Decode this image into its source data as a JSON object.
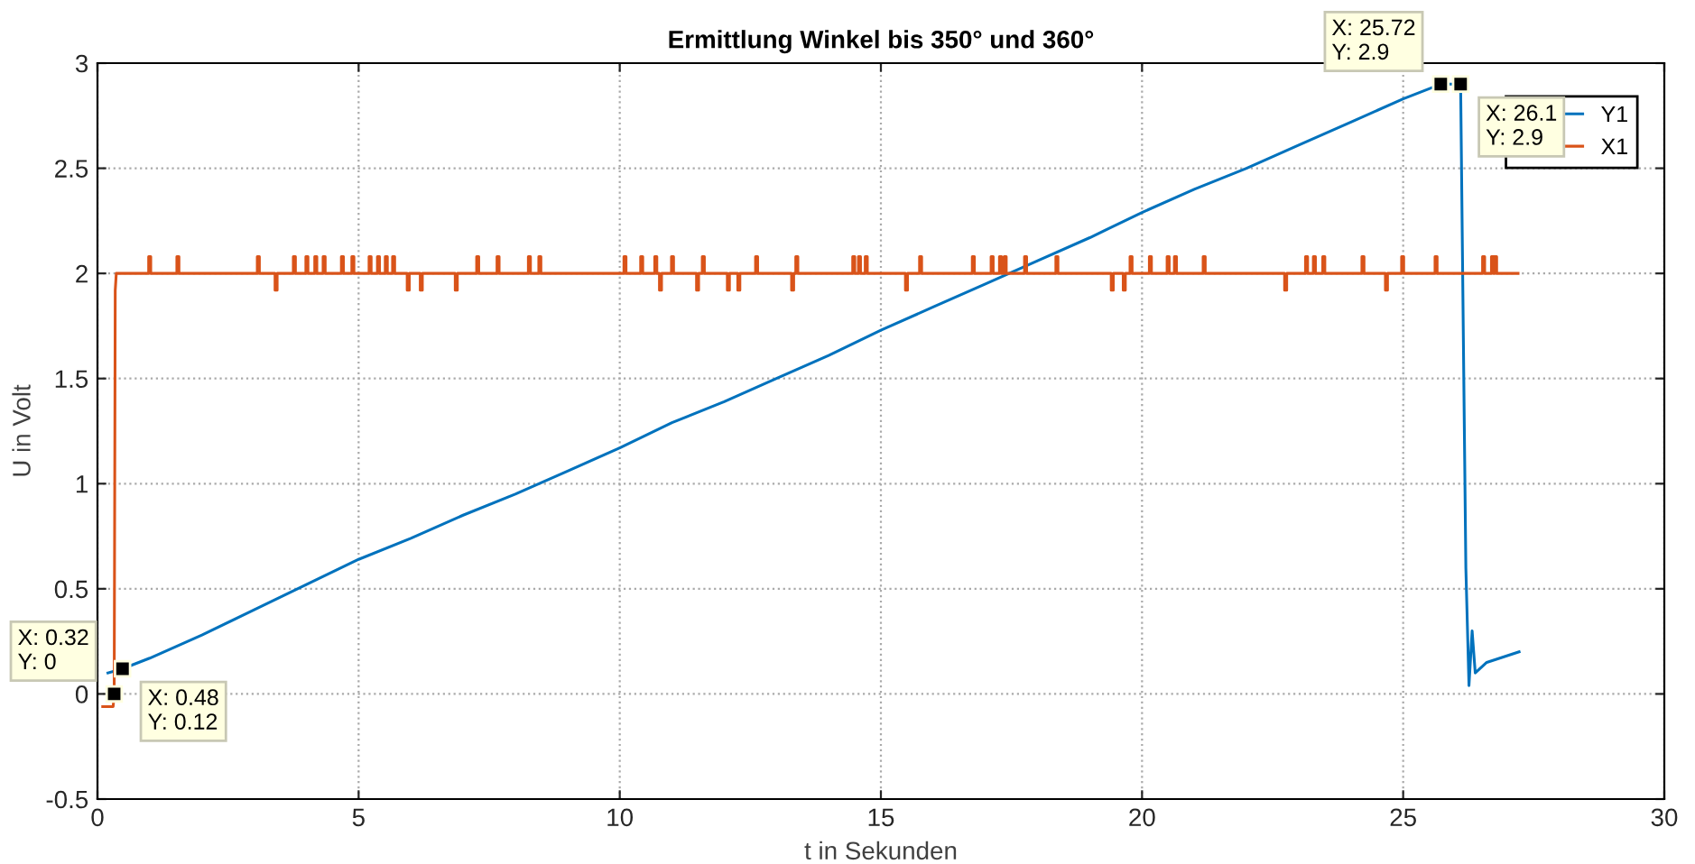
{
  "chart_data": {
    "type": "line",
    "title": "Ermittlung Winkel bis 350° und 360°",
    "xlabel": "t in Sekunden",
    "ylabel": "U in Volt",
    "xlim": [
      0,
      30
    ],
    "xticks": [
      0,
      5,
      10,
      15,
      20,
      25,
      30
    ],
    "ylim": [
      -0.5,
      3
    ],
    "yticks": [
      -0.5,
      0,
      0.5,
      1,
      1.5,
      2,
      2.5,
      3
    ],
    "grid": true,
    "legend": "top right",
    "marker": "none",
    "line_style": "solid",
    "series": [
      {
        "name": "Y1",
        "color": "#0072bd",
        "x": [
          0.2,
          0.48,
          1,
          2,
          3,
          4,
          5,
          6,
          7,
          8,
          9,
          10,
          11,
          12,
          13,
          14,
          15,
          16,
          17,
          18,
          19,
          20,
          21,
          22,
          23,
          24,
          25,
          25.72,
          26.1,
          26.2,
          26.26,
          26.32,
          26.38,
          26.6,
          27.22
        ],
        "values": [
          0.1,
          0.12,
          0.17,
          0.28,
          0.4,
          0.52,
          0.64,
          0.74,
          0.85,
          0.95,
          1.06,
          1.17,
          1.29,
          1.39,
          1.5,
          1.61,
          1.73,
          1.84,
          1.95,
          2.06,
          2.17,
          2.29,
          2.4,
          2.5,
          2.61,
          2.72,
          2.83,
          2.9,
          2.9,
          0.6,
          0.04,
          0.3,
          0.1,
          0.15,
          0.2
        ]
      },
      {
        "name": "X1",
        "color": "#d95319",
        "x": [
          0.1,
          0.3,
          0.32,
          0.34,
          0.36,
          0.98,
          0.98,
          1.02,
          1.02,
          1.52,
          1.52,
          1.56,
          1.56,
          3.06,
          3.06,
          3.1,
          3.1,
          3.4,
          3.4,
          3.44,
          3.44,
          3.75,
          3.75,
          3.79,
          3.79,
          3.99,
          3.99,
          4.03,
          4.03,
          4.16,
          4.16,
          4.2,
          4.2,
          4.32,
          4.32,
          4.36,
          4.36,
          4.67,
          4.67,
          4.71,
          4.71,
          4.87,
          4.87,
          4.91,
          4.91,
          5.2,
          5.2,
          5.24,
          5.24,
          5.36,
          5.36,
          5.4,
          5.4,
          5.51,
          5.51,
          5.55,
          5.55,
          5.65,
          5.65,
          5.69,
          5.69,
          5.93,
          5.93,
          5.97,
          5.97,
          6.18,
          6.18,
          6.22,
          6.22,
          6.85,
          6.85,
          6.89,
          6.89,
          7.26,
          7.26,
          7.3,
          7.3,
          7.65,
          7.65,
          7.69,
          7.69,
          8.25,
          8.25,
          8.29,
          8.29,
          8.45,
          8.45,
          8.49,
          8.49,
          10.08,
          10.08,
          10.12,
          10.12,
          10.4,
          10.4,
          10.44,
          10.44,
          10.67,
          10.67,
          10.71,
          10.71,
          10.76,
          10.76,
          10.8,
          10.8,
          10.99,
          10.99,
          11.03,
          11.03,
          11.47,
          11.47,
          11.51,
          11.51,
          11.58,
          11.58,
          11.62,
          11.62,
          12.06,
          12.06,
          12.1,
          12.1,
          12.26,
          12.26,
          12.3,
          12.3,
          12.6,
          12.6,
          12.64,
          12.64,
          13.29,
          13.29,
          13.33,
          13.33,
          13.37,
          13.37,
          13.41,
          13.41,
          14.46,
          14.46,
          14.5,
          14.5,
          14.57,
          14.57,
          14.61,
          14.61,
          14.7,
          14.7,
          14.74,
          14.74,
          15.47,
          15.47,
          15.51,
          15.51,
          15.74,
          15.74,
          15.78,
          15.78,
          16.75,
          16.75,
          16.79,
          16.79,
          17.11,
          17.11,
          17.15,
          17.15,
          17.27,
          17.27,
          17.31,
          17.31,
          17.36,
          17.36,
          17.4,
          17.4,
          17.75,
          17.75,
          17.79,
          17.79,
          18.35,
          18.35,
          18.39,
          18.39,
          19.41,
          19.41,
          19.45,
          19.45,
          19.64,
          19.64,
          19.68,
          19.68,
          19.77,
          19.77,
          19.81,
          19.81,
          20.14,
          20.14,
          20.18,
          20.18,
          20.48,
          20.48,
          20.52,
          20.52,
          20.62,
          20.62,
          20.66,
          20.66,
          21.17,
          21.17,
          21.21,
          21.21,
          22.73,
          22.73,
          22.77,
          22.77,
          23.13,
          23.13,
          23.17,
          23.17,
          23.28,
          23.28,
          23.32,
          23.32,
          23.46,
          23.46,
          23.5,
          23.5,
          24.21,
          24.21,
          24.25,
          24.25,
          24.66,
          24.66,
          24.7,
          24.7,
          24.97,
          24.97,
          25.01,
          25.01,
          25.61,
          25.61,
          25.65,
          25.65,
          26.52,
          26.52,
          26.56,
          26.56,
          26.69,
          26.69,
          26.73,
          26.73,
          26.75,
          26.75,
          26.79,
          26.79,
          27.2
        ],
        "values": [
          -0.06,
          -0.06,
          0,
          1.92,
          2,
          2,
          2.08,
          2.08,
          2,
          2,
          2.08,
          2.08,
          2,
          2,
          2.08,
          2.08,
          2,
          2,
          1.92,
          1.92,
          2,
          2,
          2.08,
          2.08,
          2,
          2,
          2.08,
          2.08,
          2,
          2,
          2.08,
          2.08,
          2,
          2,
          2.08,
          2.08,
          2,
          2,
          2.08,
          2.08,
          2,
          2,
          2.08,
          2.08,
          2,
          2,
          2.08,
          2.08,
          2,
          2,
          2.08,
          2.08,
          2,
          2,
          2.08,
          2.08,
          2,
          2,
          2.08,
          2.08,
          2,
          2,
          1.92,
          1.92,
          2,
          2,
          1.92,
          1.92,
          2,
          2,
          1.92,
          1.92,
          2,
          2,
          2.08,
          2.08,
          2,
          2,
          2.08,
          2.08,
          2,
          2,
          2.08,
          2.08,
          2,
          2,
          2.08,
          2.08,
          2,
          2,
          2.08,
          2.08,
          2,
          2,
          2.08,
          2.08,
          2,
          2,
          2.08,
          2.08,
          2,
          2,
          1.92,
          1.92,
          2,
          2,
          2.08,
          2.08,
          2,
          2,
          1.92,
          1.92,
          2,
          2,
          2.08,
          2.08,
          2,
          2,
          1.92,
          1.92,
          2,
          2,
          1.92,
          1.92,
          2,
          2,
          2.08,
          2.08,
          2,
          2,
          1.92,
          1.92,
          2,
          2,
          2.08,
          2.08,
          2,
          2,
          2.08,
          2.08,
          2,
          2,
          2.08,
          2.08,
          2,
          2,
          2.08,
          2.08,
          2,
          2,
          1.92,
          1.92,
          2,
          2,
          2.08,
          2.08,
          2,
          2,
          2.08,
          2.08,
          2,
          2,
          2.08,
          2.08,
          2,
          2,
          2.08,
          2.08,
          2,
          2,
          2.08,
          2.08,
          2,
          2,
          2.08,
          2.08,
          2,
          2,
          2.08,
          2.08,
          2,
          2,
          1.92,
          1.92,
          2,
          2,
          1.92,
          1.92,
          2,
          2,
          2.08,
          2.08,
          2,
          2,
          2.08,
          2.08,
          2,
          2,
          2.08,
          2.08,
          2,
          2,
          2.08,
          2.08,
          2,
          2,
          2.08,
          2.08,
          2,
          2,
          1.92,
          1.92,
          2,
          2,
          2.08,
          2.08,
          2,
          2,
          2.08,
          2.08,
          2,
          2,
          2.08,
          2.08,
          2,
          2,
          2.08,
          2.08,
          2,
          2,
          1.92,
          1.92,
          2,
          2,
          2.08,
          2.08,
          2,
          2,
          2.08,
          2.08,
          2,
          2,
          2.08,
          2.08,
          2,
          2,
          2.08,
          2.08,
          2,
          2,
          2.08,
          2.08,
          2,
          2
        ]
      }
    ],
    "annotations": [
      {
        "text": "X: 0.32\nY: 0",
        "x": 0.32,
        "y": 0
      },
      {
        "text": "X: 0.48\nY: 0.12",
        "x": 0.48,
        "y": 0.12
      },
      {
        "text": "X: 25.72\nY: 2.9",
        "x": 25.72,
        "y": 2.9
      },
      {
        "text": "X: 26.1\nY: 2.9",
        "x": 26.1,
        "y": 2.9
      }
    ]
  }
}
